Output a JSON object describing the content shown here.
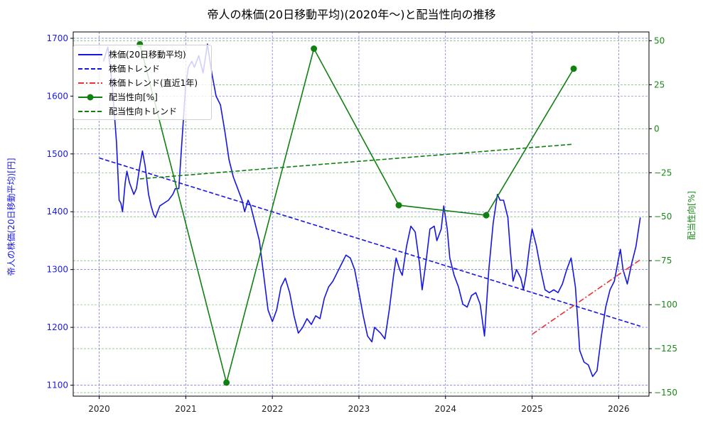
{
  "title": "帝人の株価(20日移動平均)(2020年〜)と配当性向の推移",
  "axes": {
    "left_label": "帝人の株価(20日移動平均)[円]",
    "right_label": "配当性向[%]",
    "left_ticks": [
      "1100",
      "1200",
      "1300",
      "1400",
      "1500",
      "1600",
      "1700"
    ],
    "right_ticks": [
      "−150",
      "−125",
      "−100",
      "−75",
      "−50",
      "−25",
      "0",
      "25",
      "50"
    ],
    "x_ticks": [
      "2020",
      "2021",
      "2022",
      "2023",
      "2024",
      "2025",
      "2026"
    ]
  },
  "legend": [
    {
      "label": "株価(20日移動平均)",
      "style": "solid",
      "color": "#1515e8"
    },
    {
      "label": "株価トレンド",
      "style": "dashed",
      "color": "#1515e8"
    },
    {
      "label": "株価トレンド(直近1年)",
      "style": "dashdot",
      "color": "#ee3030"
    },
    {
      "label": "配当性向[%]",
      "style": "solid-marker",
      "color": "#118011"
    },
    {
      "label": "配当性向トレンド",
      "style": "dashed",
      "color": "#118011"
    }
  ],
  "colors": {
    "price": "#1515e8",
    "price_trend": "#1515e8",
    "recent_trend": "#ee3030",
    "payout": "#118011",
    "payout_trend": "#118011",
    "grid_left": "#5555dd",
    "grid_right": "#55aa55"
  },
  "chart_data": {
    "type": "line",
    "title": "帝人の株価(20日移動平均)(2020年〜)と配当性向の推移",
    "xlabel": "",
    "ylabel": "帝人の株価(20日移動平均)[円]",
    "ylabel_right": "配当性向[%]",
    "xlim": [
      2019.7,
      2026.35
    ],
    "ylim": [
      1081,
      1711
    ],
    "ylim_right": [
      -152,
      55
    ],
    "grid": true,
    "legend_position": "upper left",
    "series": [
      {
        "name": "株価(20日移動平均)",
        "axis": "left",
        "style": "solid",
        "points": [
          [
            2020.05,
            1660
          ],
          [
            2020.1,
            1685
          ],
          [
            2020.15,
            1620
          ],
          [
            2020.2,
            1520
          ],
          [
            2020.23,
            1420
          ],
          [
            2020.25,
            1415
          ],
          [
            2020.27,
            1400
          ],
          [
            2020.3,
            1450
          ],
          [
            2020.32,
            1470
          ],
          [
            2020.35,
            1450
          ],
          [
            2020.4,
            1430
          ],
          [
            2020.43,
            1440
          ],
          [
            2020.47,
            1480
          ],
          [
            2020.5,
            1505
          ],
          [
            2020.53,
            1480
          ],
          [
            2020.57,
            1430
          ],
          [
            2020.6,
            1410
          ],
          [
            2020.63,
            1395
          ],
          [
            2020.65,
            1390
          ],
          [
            2020.7,
            1410
          ],
          [
            2020.75,
            1415
          ],
          [
            2020.8,
            1420
          ],
          [
            2020.85,
            1430
          ],
          [
            2020.88,
            1440
          ],
          [
            2020.92,
            1440
          ],
          [
            2020.95,
            1510
          ],
          [
            2021.0,
            1620
          ],
          [
            2021.03,
            1650
          ],
          [
            2021.07,
            1660
          ],
          [
            2021.1,
            1650
          ],
          [
            2021.15,
            1670
          ],
          [
            2021.2,
            1640
          ],
          [
            2021.25,
            1690
          ],
          [
            2021.3,
            1640
          ],
          [
            2021.35,
            1600
          ],
          [
            2021.4,
            1585
          ],
          [
            2021.45,
            1540
          ],
          [
            2021.5,
            1490
          ],
          [
            2021.55,
            1460
          ],
          [
            2021.6,
            1440
          ],
          [
            2021.65,
            1420
          ],
          [
            2021.68,
            1400
          ],
          [
            2021.72,
            1420
          ],
          [
            2021.75,
            1410
          ],
          [
            2021.8,
            1380
          ],
          [
            2021.85,
            1350
          ],
          [
            2021.9,
            1290
          ],
          [
            2021.95,
            1230
          ],
          [
            2022.0,
            1210
          ],
          [
            2022.05,
            1230
          ],
          [
            2022.1,
            1270
          ],
          [
            2022.15,
            1285
          ],
          [
            2022.2,
            1260
          ],
          [
            2022.25,
            1220
          ],
          [
            2022.3,
            1190
          ],
          [
            2022.35,
            1200
          ],
          [
            2022.4,
            1215
          ],
          [
            2022.45,
            1205
          ],
          [
            2022.5,
            1220
          ],
          [
            2022.55,
            1215
          ],
          [
            2022.6,
            1250
          ],
          [
            2022.65,
            1270
          ],
          [
            2022.7,
            1280
          ],
          [
            2022.75,
            1295
          ],
          [
            2022.8,
            1310
          ],
          [
            2022.85,
            1325
          ],
          [
            2022.9,
            1320
          ],
          [
            2022.95,
            1300
          ],
          [
            2023.0,
            1260
          ],
          [
            2023.05,
            1220
          ],
          [
            2023.1,
            1185
          ],
          [
            2023.15,
            1175
          ],
          [
            2023.18,
            1200
          ],
          [
            2023.25,
            1190
          ],
          [
            2023.3,
            1180
          ],
          [
            2023.35,
            1230
          ],
          [
            2023.4,
            1290
          ],
          [
            2023.43,
            1320
          ],
          [
            2023.47,
            1300
          ],
          [
            2023.5,
            1290
          ],
          [
            2023.55,
            1340
          ],
          [
            2023.6,
            1375
          ],
          [
            2023.65,
            1365
          ],
          [
            2023.7,
            1310
          ],
          [
            2023.73,
            1265
          ],
          [
            2023.78,
            1320
          ],
          [
            2023.82,
            1370
          ],
          [
            2023.87,
            1375
          ],
          [
            2023.9,
            1350
          ],
          [
            2023.95,
            1370
          ],
          [
            2023.98,
            1410
          ],
          [
            2024.02,
            1370
          ],
          [
            2024.05,
            1320
          ],
          [
            2024.1,
            1290
          ],
          [
            2024.15,
            1270
          ],
          [
            2024.2,
            1240
          ],
          [
            2024.25,
            1235
          ],
          [
            2024.3,
            1255
          ],
          [
            2024.35,
            1260
          ],
          [
            2024.4,
            1240
          ],
          [
            2024.45,
            1185
          ],
          [
            2024.5,
            1300
          ],
          [
            2024.55,
            1380
          ],
          [
            2024.6,
            1430
          ],
          [
            2024.63,
            1420
          ],
          [
            2024.67,
            1420
          ],
          [
            2024.72,
            1390
          ],
          [
            2024.75,
            1330
          ],
          [
            2024.78,
            1280
          ],
          [
            2024.82,
            1300
          ],
          [
            2024.87,
            1285
          ],
          [
            2024.9,
            1265
          ],
          [
            2024.93,
            1290
          ],
          [
            2024.97,
            1340
          ],
          [
            2025.0,
            1370
          ],
          [
            2025.05,
            1340
          ],
          [
            2025.1,
            1300
          ],
          [
            2025.15,
            1265
          ],
          [
            2025.2,
            1260
          ],
          [
            2025.25,
            1265
          ],
          [
            2025.3,
            1260
          ],
          [
            2025.35,
            1275
          ],
          [
            2025.4,
            1300
          ],
          [
            2025.45,
            1320
          ],
          [
            2025.5,
            1270
          ],
          [
            2025.55,
            1160
          ],
          [
            2025.6,
            1140
          ],
          [
            2025.65,
            1135
          ],
          [
            2025.7,
            1115
          ],
          [
            2025.75,
            1125
          ],
          [
            2025.8,
            1185
          ],
          [
            2025.85,
            1235
          ],
          [
            2025.9,
            1265
          ],
          [
            2025.95,
            1280
          ],
          [
            2026.0,
            1320
          ],
          [
            2026.02,
            1335
          ],
          [
            2026.05,
            1300
          ],
          [
            2026.1,
            1275
          ],
          [
            2026.15,
            1310
          ],
          [
            2026.2,
            1340
          ],
          [
            2026.25,
            1390
          ]
        ]
      },
      {
        "name": "株価トレンド",
        "axis": "left",
        "style": "dashed",
        "points": [
          [
            2020.0,
            1493
          ],
          [
            2026.25,
            1202
          ]
        ]
      },
      {
        "name": "株価トレンド(直近1年)",
        "axis": "left",
        "style": "dashdot",
        "points": [
          [
            2025.0,
            1188
          ],
          [
            2026.25,
            1317
          ]
        ]
      },
      {
        "name": "配当性向[%]",
        "axis": "right",
        "style": "solid-marker",
        "points": [
          [
            2020.47,
            48
          ],
          [
            2021.47,
            -144.3
          ],
          [
            2022.48,
            45.5
          ],
          [
            2023.46,
            -43.5
          ],
          [
            2024.47,
            -49.2
          ],
          [
            2025.48,
            34.1
          ]
        ]
      },
      {
        "name": "配当性向トレンド",
        "axis": "right",
        "style": "dashed",
        "points": [
          [
            2020.47,
            -28.5
          ],
          [
            2025.48,
            -8.8
          ]
        ]
      }
    ]
  }
}
